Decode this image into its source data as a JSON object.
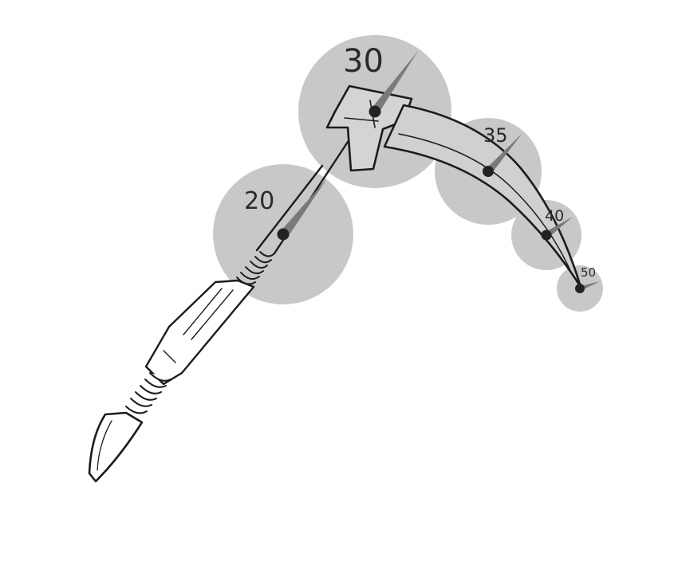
{
  "colors": {
    "circle": "#c8c8c8",
    "needle": "#7a7a7a",
    "pivot": "#222222",
    "ink": "#1c1c1c",
    "background": "#ffffff"
  },
  "markers": [
    {
      "id": "marker-20",
      "label": "20"
    },
    {
      "id": "marker-30",
      "label": "30"
    },
    {
      "id": "marker-35",
      "label": "35"
    },
    {
      "id": "marker-40",
      "label": "40"
    },
    {
      "id": "marker-50",
      "label": "50"
    }
  ]
}
